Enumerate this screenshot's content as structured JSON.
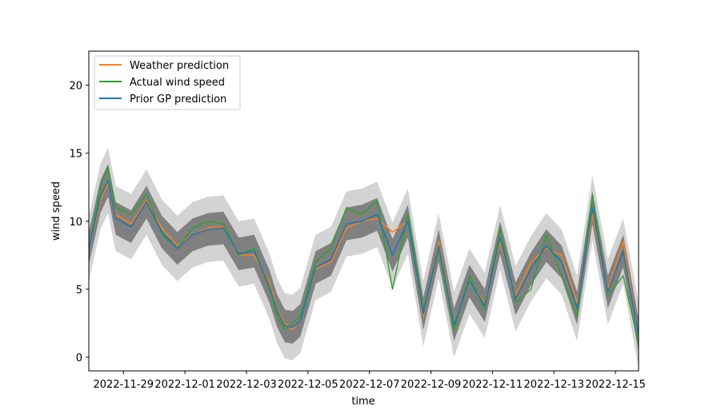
{
  "chart_data": {
    "type": "line",
    "xlabel": "time",
    "ylabel": "wind speed",
    "xlim": [
      "2022-11-27 21:00",
      "2022-12-15 18:00"
    ],
    "ylim": [
      -1,
      22.5
    ],
    "x_ticks": [
      "2022-11-29",
      "2022-12-01",
      "2022-12-03",
      "2022-12-05",
      "2022-12-07",
      "2022-12-09",
      "2022-12-11",
      "2022-12-13",
      "2022-12-15"
    ],
    "y_ticks": [
      0,
      5,
      10,
      15,
      20
    ],
    "grid": false,
    "legend_position": "upper-left",
    "x_dates": [
      "2022-11-27 21:00",
      "2022-11-28 06:00",
      "2022-11-28 12:00",
      "2022-11-28 18:00",
      "2022-11-29 06:00",
      "2022-11-29 18:00",
      "2022-11-30 06:00",
      "2022-11-30 18:00",
      "2022-12-01 06:00",
      "2022-12-01 18:00",
      "2022-12-02 06:00",
      "2022-12-02 18:00",
      "2022-12-03 06:00",
      "2022-12-03 18:00",
      "2022-12-04 00:00",
      "2022-12-04 06:00",
      "2022-12-04 12:00",
      "2022-12-04 18:00",
      "2022-12-05 06:00",
      "2022-12-05 18:00",
      "2022-12-06 06:00",
      "2022-12-06 18:00",
      "2022-12-07 06:00",
      "2022-12-07 18:00",
      "2022-12-08 06:00",
      "2022-12-08 18:00",
      "2022-12-09 06:00",
      "2022-12-09 18:00",
      "2022-12-10 06:00",
      "2022-12-10 18:00",
      "2022-12-11 06:00",
      "2022-12-11 18:00",
      "2022-12-12 06:00",
      "2022-12-12 18:00",
      "2022-12-13 06:00",
      "2022-12-13 18:00",
      "2022-12-14 06:00",
      "2022-12-14 18:00",
      "2022-12-15 06:00",
      "2022-12-15 18:00"
    ],
    "series": [
      {
        "name": "Weather prediction",
        "color": "#ff7f0e",
        "values": [
          8.0,
          11.5,
          12.8,
          10.5,
          9.8,
          11.5,
          9.5,
          8.2,
          9.0,
          9.5,
          9.6,
          7.5,
          7.5,
          5.5,
          3.5,
          2.5,
          2.0,
          2.8,
          6.5,
          7.0,
          9.5,
          10.0,
          10.2,
          9.2,
          10.0,
          3.0,
          8.5,
          2.5,
          5.5,
          4.0,
          8.5,
          4.5,
          7.0,
          8.0,
          7.5,
          4.0,
          10.5,
          5.0,
          8.5,
          1.5
        ]
      },
      {
        "name": "Actual wind speed",
        "color": "#2ca02c",
        "values": [
          8.0,
          12.5,
          14.0,
          11.0,
          10.5,
          12.0,
          9.0,
          8.0,
          9.5,
          10.0,
          9.8,
          7.5,
          8.0,
          5.0,
          3.0,
          2.0,
          2.5,
          3.0,
          7.0,
          8.0,
          11.0,
          10.5,
          11.5,
          5.0,
          10.5,
          3.5,
          8.0,
          2.0,
          6.0,
          3.5,
          9.5,
          4.0,
          5.0,
          9.0,
          6.0,
          3.0,
          12.0,
          4.5,
          6.0,
          1.0
        ]
      },
      {
        "name": "Prior GP prediction",
        "color": "#1f77b4",
        "values": [
          8.0,
          11.8,
          13.0,
          10.2,
          9.6,
          11.4,
          9.2,
          8.0,
          9.0,
          9.4,
          9.5,
          7.6,
          7.8,
          5.2,
          3.4,
          2.3,
          2.2,
          2.7,
          6.6,
          7.2,
          9.8,
          10.0,
          10.5,
          7.5,
          10.0,
          3.2,
          8.2,
          2.4,
          5.6,
          3.8,
          8.8,
          4.3,
          6.5,
          8.2,
          7.0,
          3.6,
          11.0,
          4.8,
          7.8,
          1.6
        ]
      }
    ],
    "bands": [
      {
        "level": "inner",
        "color": "#808080",
        "lower_offset": -1.2,
        "upper_offset": 1.2
      },
      {
        "level": "outer",
        "color": "#d3d3d3",
        "lower_offset": -2.4,
        "upper_offset": 2.4
      }
    ]
  }
}
